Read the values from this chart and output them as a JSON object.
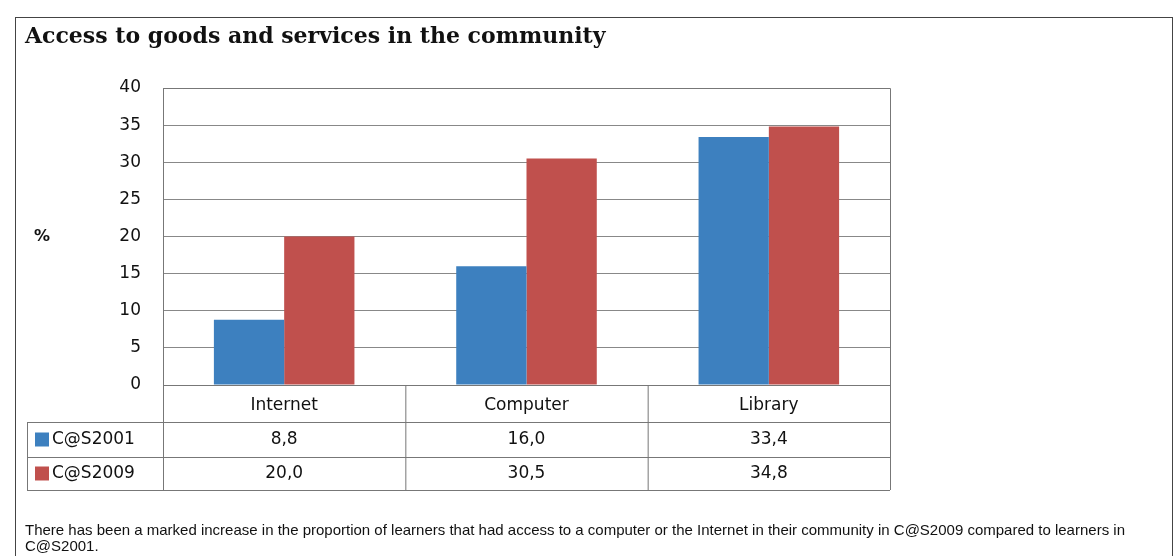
{
  "chart_data": {
    "type": "bar",
    "title": "Access to goods and services in the community",
    "ylabel": "%",
    "categories": [
      "Internet",
      "Computer",
      "Library"
    ],
    "series": [
      {
        "name": "C@S2001",
        "color": "#3d80bf",
        "values": [
          8.8,
          16.0,
          33.4
        ],
        "value_labels": [
          "8,8",
          "16,0",
          "33,4"
        ]
      },
      {
        "name": "C@S2009",
        "color": "#c0504d",
        "values": [
          20.0,
          30.5,
          34.8
        ],
        "value_labels": [
          "20,0",
          "30,5",
          "34,8"
        ]
      }
    ],
    "ylim": [
      0,
      40
    ],
    "yticks": [
      0,
      5,
      10,
      15,
      20,
      25,
      30,
      35,
      40
    ],
    "grid": "y",
    "legend": "bottom",
    "annotations": [
      "There has been a marked increase in the proportion of learners that had access to a computer or the Internet in their community in C@S2009 compared to learners in C@S2001."
    ]
  }
}
